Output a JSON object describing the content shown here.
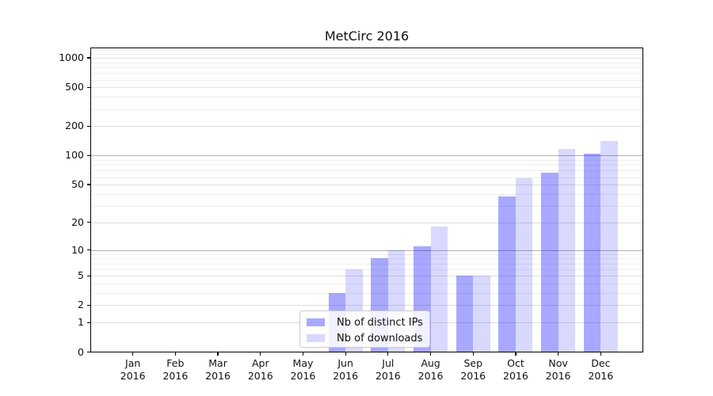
{
  "title": "MetCirc 2016",
  "legend": {
    "items": [
      {
        "label": "Nb of distinct IPs",
        "color": "rgba(0,0,255,0.34)"
      },
      {
        "label": "Nb of downloads",
        "color": "rgba(0,0,255,0.15)"
      }
    ]
  },
  "colors": {
    "bar_distinct_ips": "rgba(0,0,255,0.34)",
    "bar_downloads": "rgba(0,0,255,0.15)",
    "grid_emphasis": "#b0b0b0",
    "grid_tick": "#dfdfdf",
    "grid_minor": "#eeeeee",
    "axis": "#000000",
    "legend_border": "#cccccc"
  },
  "chart_data": {
    "type": "bar",
    "title": "MetCirc 2016",
    "categories": [
      "Jan",
      "Feb",
      "Mar",
      "Apr",
      "May",
      "Jun",
      "Jul",
      "Aug",
      "Sep",
      "Oct",
      "Nov",
      "Dec"
    ],
    "year_label": "2016",
    "series": [
      {
        "name": "Nb of distinct IPs",
        "values": [
          0,
          0,
          0,
          0,
          0,
          3,
          8,
          11,
          5,
          38,
          67,
          104
        ]
      },
      {
        "name": "Nb of downloads",
        "values": [
          0,
          0,
          0,
          0,
          0,
          6,
          10,
          18,
          5,
          58,
          117,
          140
        ]
      }
    ],
    "xlabel": "",
    "ylabel": "",
    "yscale": "log1p",
    "ylim": [
      0,
      1276
    ],
    "yticks": [
      0,
      1,
      2,
      5,
      10,
      20,
      50,
      100,
      200,
      500,
      1000
    ],
    "emphasized_gridlines": [
      10,
      100
    ],
    "grid": true,
    "legend_position": "inside lower-center"
  }
}
